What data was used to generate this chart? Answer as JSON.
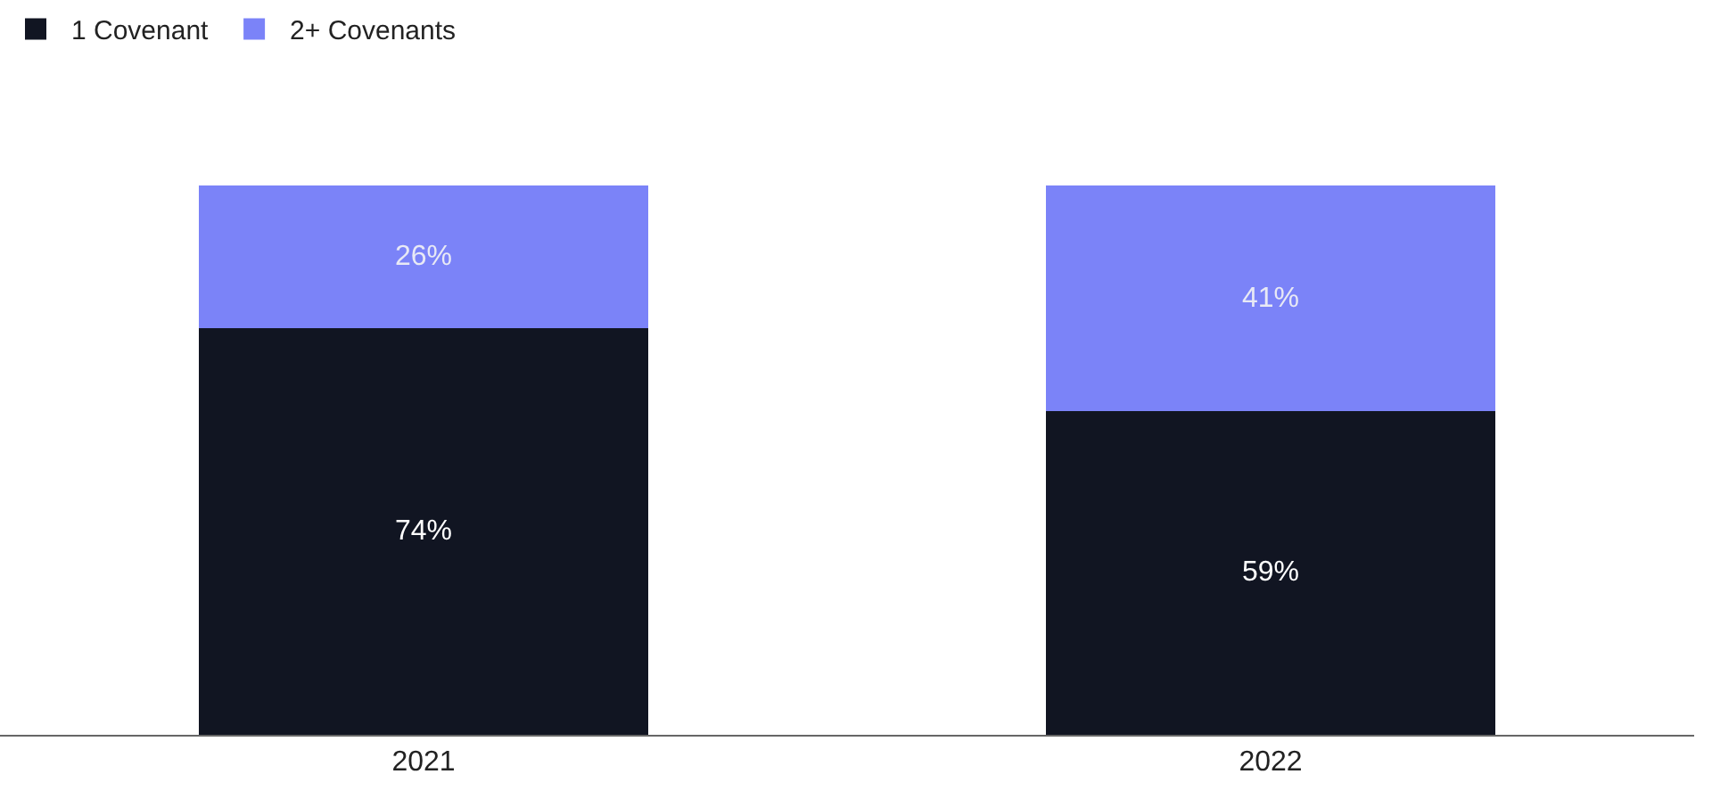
{
  "chart_data": {
    "type": "bar",
    "stacked": true,
    "categories": [
      "2021",
      "2022"
    ],
    "series": [
      {
        "name": "1 Covenant",
        "color": "#111522",
        "values": [
          74,
          59
        ],
        "value_labels": [
          "74%",
          "59%"
        ]
      },
      {
        "name": "2+ Covenants",
        "color": "#7b83f8",
        "values": [
          26,
          41
        ],
        "value_labels": [
          "26%",
          "41%"
        ]
      }
    ],
    "legend": "top left"
  }
}
